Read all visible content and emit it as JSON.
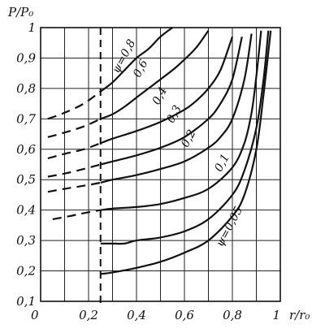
{
  "chart_data": {
    "type": "line",
    "title": "",
    "ylabel": "P/P₀",
    "xlabel": "r/r₀",
    "xlim": [
      0,
      1
    ],
    "ylim": [
      0.1,
      1
    ],
    "grid": true,
    "x_ticks": [
      {
        "value": 0,
        "label": "0"
      },
      {
        "value": 0.2,
        "label": "0,2"
      },
      {
        "value": 0.4,
        "label": "0,4"
      },
      {
        "value": 0.6,
        "label": "0,6"
      },
      {
        "value": 0.8,
        "label": "0,8"
      },
      {
        "value": 1,
        "label": "1"
      }
    ],
    "y_ticks": [
      {
        "value": 0.1,
        "label": "0,1"
      },
      {
        "value": 0.2,
        "label": "0,2"
      },
      {
        "value": 0.3,
        "label": "0,3"
      },
      {
        "value": 0.4,
        "label": "0,4"
      },
      {
        "value": 0.5,
        "label": "0,5"
      },
      {
        "value": 0.6,
        "label": "0,6"
      },
      {
        "value": 0.7,
        "label": "0,7"
      },
      {
        "value": 0.8,
        "label": "0,8"
      },
      {
        "value": 0.9,
        "label": "0,9"
      },
      {
        "value": 1,
        "label": "1"
      }
    ],
    "vertical_dashed_line_x": 0.25,
    "series": [
      {
        "label": "ψ=0,8",
        "label_at": [
          0.36,
          0.9
        ],
        "dashed_x": [
          0.03,
          0.25
        ],
        "x": [
          0.03,
          0.1,
          0.18,
          0.25,
          0.3,
          0.35,
          0.4,
          0.45,
          0.5,
          0.55
        ],
        "y": [
          0.7,
          0.72,
          0.75,
          0.79,
          0.82,
          0.86,
          0.9,
          0.93,
          0.97,
          1.0
        ]
      },
      {
        "label": "0,6",
        "label_at": [
          0.43,
          0.86
        ],
        "dashed_x": [
          0.03,
          0.25
        ],
        "x": [
          0.03,
          0.1,
          0.18,
          0.25,
          0.3,
          0.35,
          0.4,
          0.45,
          0.5,
          0.55,
          0.6,
          0.65,
          0.7
        ],
        "y": [
          0.64,
          0.655,
          0.675,
          0.7,
          0.715,
          0.74,
          0.77,
          0.8,
          0.83,
          0.86,
          0.895,
          0.935,
          0.99
        ]
      },
      {
        "label": "0,4",
        "label_at": [
          0.51,
          0.77
        ],
        "dashed_x": [
          0.03,
          0.25
        ],
        "x": [
          0.03,
          0.1,
          0.18,
          0.25,
          0.3,
          0.4,
          0.5,
          0.6,
          0.65,
          0.7,
          0.75,
          0.8
        ],
        "y": [
          0.57,
          0.585,
          0.6,
          0.62,
          0.635,
          0.66,
          0.69,
          0.73,
          0.76,
          0.8,
          0.86,
          0.97
        ]
      },
      {
        "label": "0,3",
        "label_at": [
          0.57,
          0.71
        ],
        "dashed_x": [
          0.03,
          0.25
        ],
        "x": [
          0.03,
          0.1,
          0.18,
          0.25,
          0.3,
          0.4,
          0.5,
          0.6,
          0.7,
          0.75,
          0.8,
          0.84
        ],
        "y": [
          0.51,
          0.52,
          0.535,
          0.55,
          0.56,
          0.58,
          0.605,
          0.64,
          0.7,
          0.75,
          0.83,
          0.97
        ]
      },
      {
        "label": "0,2",
        "label_at": [
          0.63,
          0.63
        ],
        "dashed_x": [
          0.03,
          0.25
        ],
        "x": [
          0.03,
          0.1,
          0.18,
          0.25,
          0.3,
          0.4,
          0.5,
          0.6,
          0.7,
          0.75,
          0.8,
          0.85,
          0.88
        ],
        "y": [
          0.46,
          0.47,
          0.48,
          0.49,
          0.5,
          0.515,
          0.535,
          0.56,
          0.605,
          0.64,
          0.7,
          0.83,
          0.98
        ]
      },
      {
        "label": "0,1",
        "label_at": [
          0.77,
          0.55
        ],
        "dashed_x": [
          0.05,
          0.25
        ],
        "x": [
          0.05,
          0.12,
          0.18,
          0.25,
          0.3,
          0.4,
          0.5,
          0.6,
          0.7,
          0.8,
          0.85,
          0.88,
          0.9,
          0.92
        ],
        "y": [
          0.37,
          0.38,
          0.39,
          0.4,
          0.405,
          0.41,
          0.42,
          0.44,
          0.47,
          0.54,
          0.62,
          0.72,
          0.84,
          0.99
        ]
      },
      {
        "label": "ψ=0,05",
        "label_at": [
          0.8,
          0.34
        ],
        "dashed_x": [],
        "x": [
          0.25,
          0.3,
          0.35,
          0.4,
          0.5,
          0.6,
          0.7,
          0.8,
          0.85,
          0.9,
          0.93,
          0.95
        ],
        "y": [
          0.29,
          0.29,
          0.29,
          0.3,
          0.31,
          0.33,
          0.37,
          0.45,
          0.53,
          0.67,
          0.83,
          0.99
        ]
      },
      {
        "label": "",
        "label_at": [],
        "dashed_x": [],
        "x": [
          0.25,
          0.3,
          0.4,
          0.5,
          0.6,
          0.7,
          0.8,
          0.85,
          0.9,
          0.93,
          0.96
        ],
        "y": [
          0.19,
          0.195,
          0.21,
          0.23,
          0.26,
          0.3,
          0.38,
          0.45,
          0.6,
          0.78,
          0.99
        ]
      }
    ]
  }
}
